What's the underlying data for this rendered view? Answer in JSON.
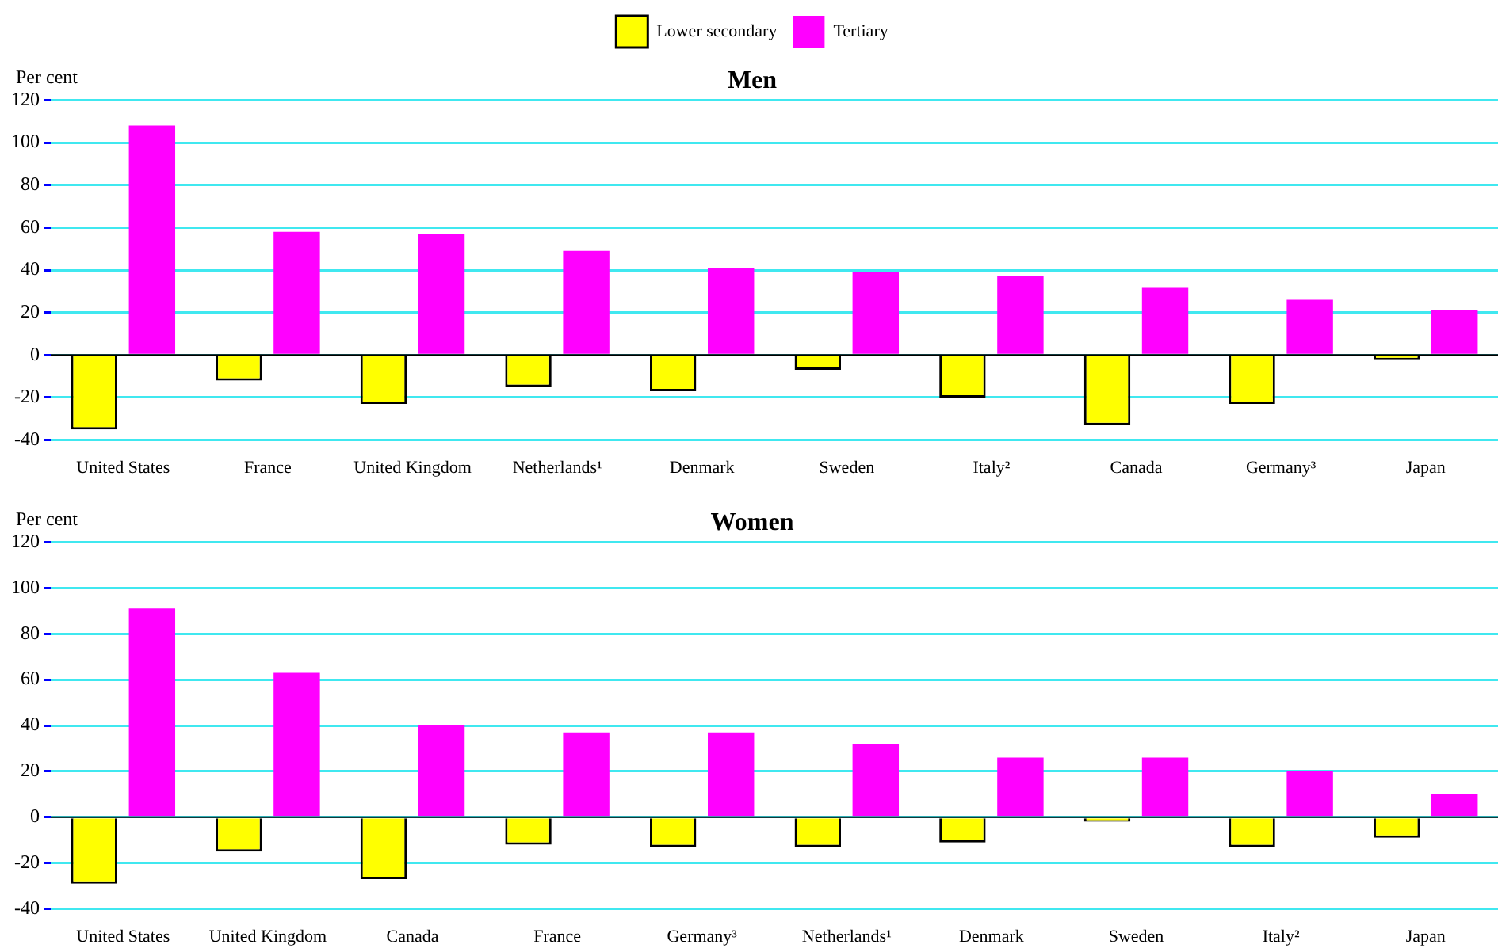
{
  "chart_data": [
    {
      "type": "bar",
      "title": "Men",
      "ylabel": "Per cent",
      "categories": [
        "United States",
        "France",
        "United Kingdom",
        "Netherlands¹",
        "Denmark",
        "Sweden",
        "Italy²",
        "Canada",
        "Germany³",
        "Japan"
      ],
      "series": [
        {
          "name": "Lower secondary",
          "color": "#ffff00",
          "values": [
            -35,
            -12,
            -23,
            -15,
            -17,
            -7,
            -20,
            -33,
            -23,
            -2
          ]
        },
        {
          "name": "Tertiary",
          "color": "#ff00ff",
          "values": [
            108,
            58,
            57,
            49,
            41,
            39,
            37,
            32,
            26,
            21
          ]
        }
      ],
      "ylim": [
        -40,
        120
      ],
      "yticks": [
        -40,
        -20,
        0,
        20,
        40,
        60,
        80,
        100,
        120
      ],
      "grid": "y",
      "legend": "top"
    },
    {
      "type": "bar",
      "title": "Women",
      "ylabel": "Per cent",
      "categories": [
        "United States",
        "United Kingdom",
        "Canada",
        "France",
        "Germany³",
        "Netherlands¹",
        "Denmark",
        "Sweden",
        "Italy²",
        "Japan"
      ],
      "series": [
        {
          "color": "#ffff00",
          "values": [
            -29,
            -15,
            -27,
            -12,
            -13,
            -13,
            -11,
            -2,
            -13,
            -9
          ]
        },
        {
          "color": "#ff00ff",
          "values": [
            91,
            63,
            40,
            37,
            37,
            32,
            26,
            26,
            20,
            10
          ]
        }
      ],
      "ylim": [
        -40,
        120
      ],
      "yticks": [
        -40,
        -20,
        0,
        20,
        40,
        60,
        80,
        100,
        120
      ],
      "grid": "y",
      "legend": false
    }
  ]
}
